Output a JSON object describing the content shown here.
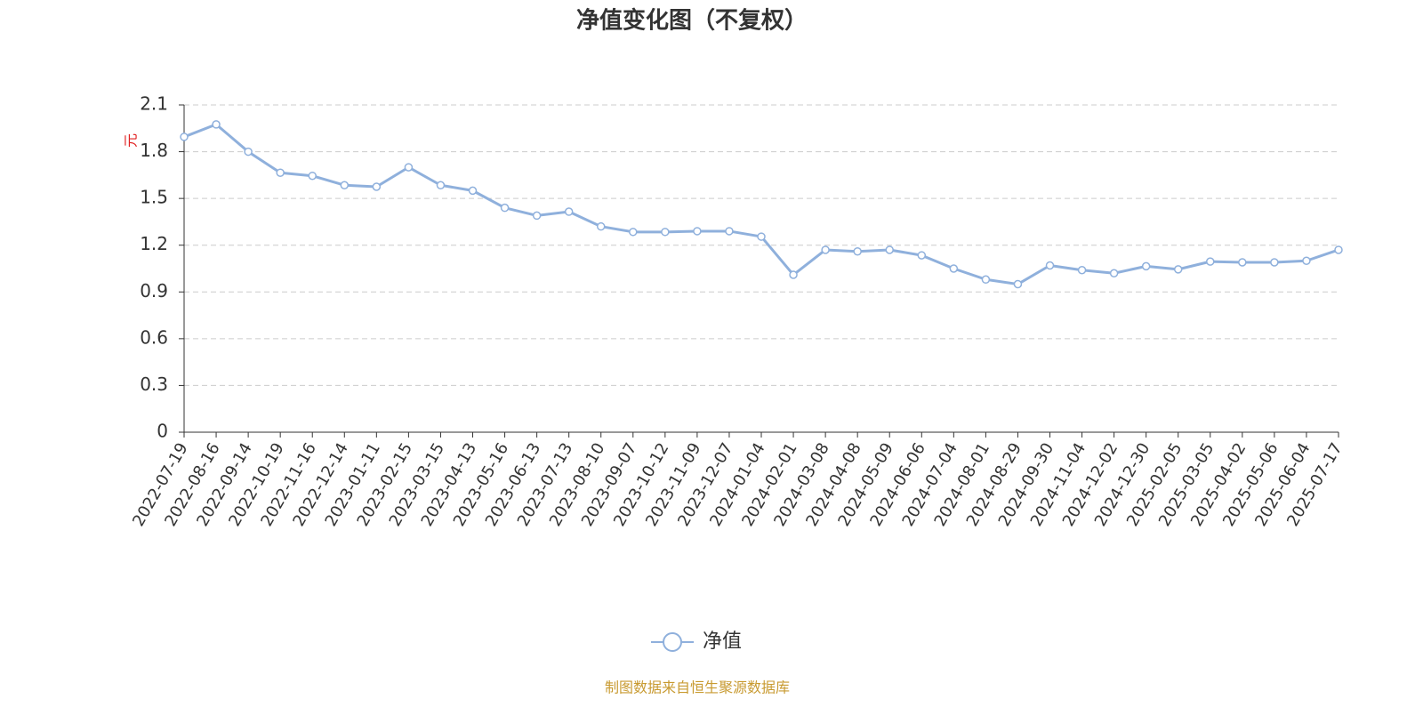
{
  "chart_data": {
    "type": "line",
    "title": "净值变化图（不复权）",
    "y_label": "元",
    "categories": [
      "2022-07-19",
      "2022-08-16",
      "2022-09-14",
      "2022-10-19",
      "2022-11-16",
      "2022-12-14",
      "2023-01-11",
      "2023-02-15",
      "2023-03-15",
      "2023-04-13",
      "2023-05-16",
      "2023-06-13",
      "2023-07-13",
      "2023-08-10",
      "2023-09-07",
      "2023-10-12",
      "2023-11-09",
      "2023-12-07",
      "2024-01-04",
      "2024-02-01",
      "2024-03-08",
      "2024-04-08",
      "2024-05-09",
      "2024-06-06",
      "2024-07-04",
      "2024-08-01",
      "2024-08-29",
      "2024-09-30",
      "2024-11-04",
      "2024-12-02",
      "2024-12-30",
      "2025-02-05",
      "2025-03-05",
      "2025-04-02",
      "2025-05-06",
      "2025-06-04",
      "2025-07-17"
    ],
    "series": [
      {
        "name": "净值",
        "color": "#8fb0dc",
        "values": [
          1.895,
          1.975,
          1.8,
          1.665,
          1.645,
          1.585,
          1.575,
          1.7,
          1.585,
          1.55,
          1.44,
          1.39,
          1.415,
          1.32,
          1.285,
          1.285,
          1.29,
          1.29,
          1.255,
          1.01,
          1.17,
          1.16,
          1.17,
          1.135,
          1.05,
          0.98,
          0.95,
          1.07,
          1.04,
          1.02,
          1.065,
          1.045,
          1.095,
          1.09,
          1.09,
          1.1,
          1.17
        ]
      }
    ],
    "ylim": [
      0,
      2.1
    ],
    "yticks": [
      0,
      0.3,
      0.6,
      0.9,
      1.2,
      1.5,
      1.8,
      2.1
    ],
    "grid": true,
    "legend": "bottom",
    "source": "制图数据来自恒生聚源数据库"
  }
}
